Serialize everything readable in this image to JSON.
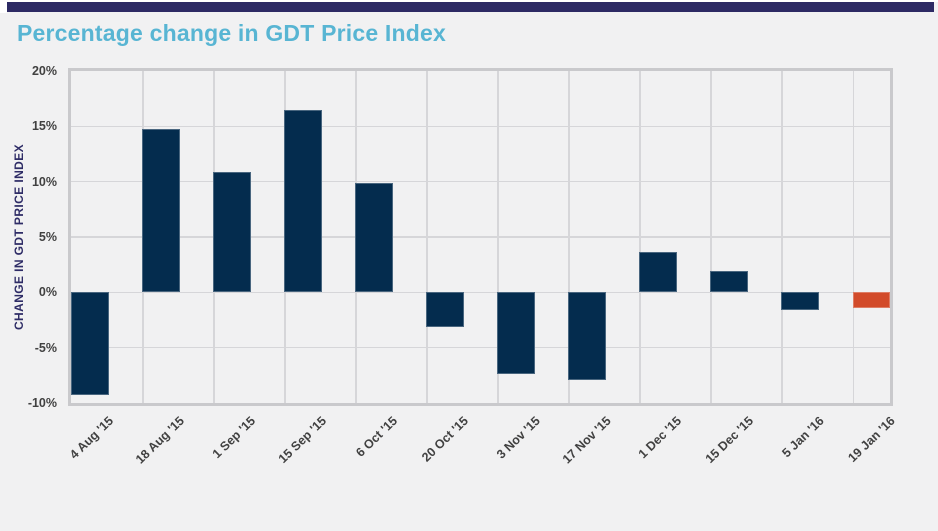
{
  "page": {
    "background_color": "#f1f1f2",
    "accent_bar_color": "#2d2a64"
  },
  "title": "Percentage change in GDT Price Index",
  "title_color": "#58b5d3",
  "chart_data": {
    "type": "bar",
    "title": "Percentage change in GDT Price Index",
    "xlabel": "",
    "ylabel": "CHANGE IN GDT PRICE INDEX",
    "categories": [
      "4 Aug '15",
      "18 Aug '15",
      "1 Sep '15",
      "15 Sep '15",
      "6 Oct '15",
      "20 Oct '15",
      "3 Nov '15",
      "17 Nov '15",
      "1 Dec '15",
      "15 Dec '15",
      "5 Jan '16",
      "19 Jan '16"
    ],
    "values": [
      -9.3,
      14.8,
      10.9,
      16.5,
      9.9,
      -3.1,
      -7.4,
      -7.9,
      3.6,
      1.9,
      -1.6,
      -1.4
    ],
    "unit": "%",
    "ylim": [
      -10,
      20
    ],
    "ytick_step": 5,
    "yticks": [
      "20%",
      "15%",
      "10%",
      "5%",
      "0%",
      "-5%",
      "-10%"
    ],
    "grid": true,
    "legend": false,
    "bar_color": "#042c4e",
    "highlight_color": "#d24b2a",
    "highlight_index": 11,
    "gridline_color": "#d6d6d9",
    "plot_border_color": "#c9c9cc",
    "tick_label_color": "#414141",
    "axis_title_color": "#2e2c66"
  }
}
